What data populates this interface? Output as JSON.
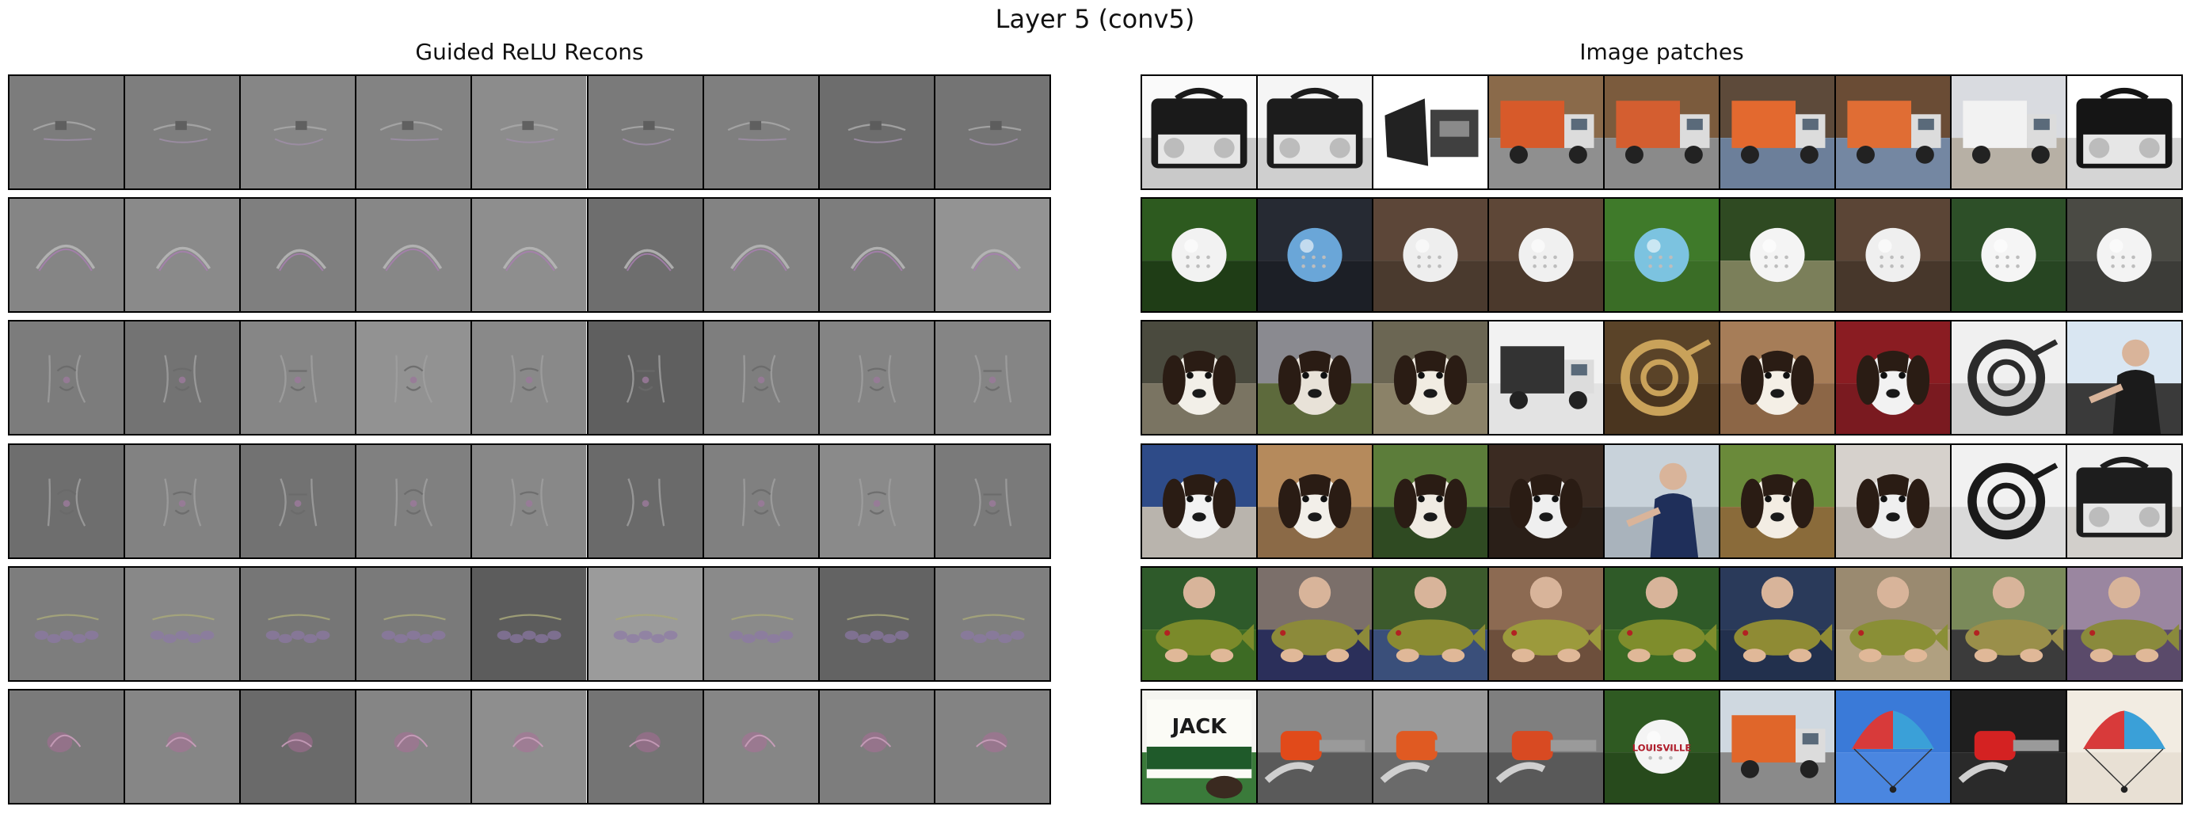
{
  "figure": {
    "title": "Layer 5 (conv5)",
    "left_panel_title": "Guided ReLU Recons",
    "right_panel_title": "Image patches"
  },
  "recons_rows": [
    {
      "motif": "texture-blob",
      "bg": [
        "#7c7c7c",
        "#7e7e7e",
        "#868686",
        "#838383",
        "#8c8c8c",
        "#7a7a7a",
        "#7f7f7f",
        "#6d6d6d",
        "#747474"
      ]
    },
    {
      "motif": "arc",
      "bg": [
        "#858585",
        "#8a8a8a",
        "#7f7f7f",
        "#878787",
        "#8e8e8e",
        "#6e6e6e",
        "#838383",
        "#7d7d7d",
        "#939393"
      ]
    },
    {
      "motif": "dog-face-sketch",
      "bg": [
        "#7c7c7c",
        "#737373",
        "#868686",
        "#929292",
        "#898989",
        "#5f5f5f",
        "#7e7e7e",
        "#848484",
        "#858585"
      ]
    },
    {
      "motif": "dog-face-sketch",
      "bg": [
        "#6e6e6e",
        "#828282",
        "#727272",
        "#808080",
        "#888888",
        "#6a6a6a",
        "#808080",
        "#8a8a8a",
        "#7a7a7a"
      ]
    },
    {
      "motif": "fish-bumps",
      "bg": [
        "#7d7d7d",
        "#888888",
        "#767676",
        "#7a7a7a",
        "#5c5c5c",
        "#9b9b9b",
        "#8a8a8a",
        "#636363",
        "#7f7f7f"
      ]
    },
    {
      "motif": "colored-blob",
      "bg": [
        "#7a7a7a",
        "#868686",
        "#6a6a6a",
        "#858585",
        "#8e8e8e",
        "#747474",
        "#868686",
        "#7d7d7d",
        "#838383"
      ]
    }
  ],
  "patch_rows": [
    {
      "content": "boombox-and-truck",
      "tiles": [
        {
          "icon": "boombox-icon",
          "sky": "#fafafa",
          "ground": "#c9c9c9",
          "obj": "#1a1a1a"
        },
        {
          "icon": "boombox-icon",
          "sky": "#f5f5f5",
          "ground": "#cfcfcf",
          "obj": "#1c1c1c"
        },
        {
          "icon": "speaker-icon",
          "sky": "#ffffff",
          "ground": "#ffffff",
          "obj": "#222222"
        },
        {
          "icon": "truck-icon",
          "sky": "#8a6a4a",
          "ground": "#8f8f8f",
          "obj": "#d75a2a"
        },
        {
          "icon": "truck-icon",
          "sky": "#7b5b3d",
          "ground": "#8a8a8a",
          "obj": "#d45e30"
        },
        {
          "icon": "truck-icon",
          "sky": "#5d4a3a",
          "ground": "#6c7f9a",
          "obj": "#e3692f"
        },
        {
          "icon": "truck-icon",
          "sky": "#6a4c35",
          "ground": "#7487a2",
          "obj": "#e06d34"
        },
        {
          "icon": "truck-icon",
          "sky": "#d9dbe0",
          "ground": "#b7b0a5",
          "obj": "#f2f2f2"
        },
        {
          "icon": "boombox-icon",
          "sky": "#ffffff",
          "ground": "#d5d5d5",
          "obj": "#151515"
        }
      ]
    },
    {
      "content": "golf-balls",
      "tiles": [
        {
          "icon": "ball-icon",
          "sky": "#2d5a1f",
          "ground": "#1f3d16",
          "obj": "#f2f2f2"
        },
        {
          "icon": "ball-icon",
          "sky": "#262a33",
          "ground": "#1c1f26",
          "obj": "#6aa6d8"
        },
        {
          "icon": "ball-icon",
          "sky": "#5c4638",
          "ground": "#4a3a2e",
          "obj": "#eeeeee"
        },
        {
          "icon": "ball-icon",
          "sky": "#5e4737",
          "ground": "#4b392c",
          "obj": "#f0f0f0"
        },
        {
          "icon": "ball-icon",
          "sky": "#3f7a2a",
          "ground": "#3a6d26",
          "obj": "#7cc3e0"
        },
        {
          "icon": "ball-icon",
          "sky": "#2f4a22",
          "ground": "#7b7f5a",
          "obj": "#f4f4f4"
        },
        {
          "icon": "ball-icon",
          "sky": "#5b4536",
          "ground": "#47372b",
          "obj": "#efefef"
        },
        {
          "icon": "ball-icon",
          "sky": "#2d4f28",
          "ground": "#274522",
          "obj": "#f5f5f5"
        },
        {
          "icon": "ball-icon",
          "sky": "#4a4a44",
          "ground": "#3c3c38",
          "obj": "#f3f3f3"
        }
      ]
    },
    {
      "content": "dogs-and-horn",
      "tiles": [
        {
          "icon": "dog-icon",
          "sky": "#4a4a3e",
          "ground": "#7a7462",
          "obj": "#f2efe8"
        },
        {
          "icon": "dog-icon",
          "sky": "#8a8a90",
          "ground": "#5d6a3c",
          "obj": "#e8e2d8"
        },
        {
          "icon": "dog-icon",
          "sky": "#6b6653",
          "ground": "#8b8268",
          "obj": "#f1ece2"
        },
        {
          "icon": "truck-icon",
          "sky": "#f2f2f2",
          "ground": "#e3e3e3",
          "obj": "#333333"
        },
        {
          "icon": "horn-icon",
          "sky": "#5a4328",
          "ground": "#4a351f",
          "obj": "#c9a25a"
        },
        {
          "icon": "dog-icon",
          "sky": "#a67d58",
          "ground": "#8c6646",
          "obj": "#f4efe6"
        },
        {
          "icon": "dog-icon",
          "sky": "#8a1c22",
          "ground": "#7a1a20",
          "obj": "#f2f2f2"
        },
        {
          "icon": "horn-icon",
          "sky": "#f0f0f0",
          "ground": "#cfcfcf",
          "obj": "#2b2b2b"
        },
        {
          "icon": "person-icon",
          "sky": "#d9e6f2",
          "ground": "#3a3a3a",
          "obj": "#1b1b1b"
        }
      ]
    },
    {
      "content": "spaniels",
      "tiles": [
        {
          "icon": "dog-icon",
          "sky": "#2e4b88",
          "ground": "#b9b4ad",
          "obj": "#f2f2f2"
        },
        {
          "icon": "dog-icon",
          "sky": "#b58a5c",
          "ground": "#8b6a47",
          "obj": "#f2efe9"
        },
        {
          "icon": "dog-icon",
          "sky": "#5c7d3a",
          "ground": "#2f4a22",
          "obj": "#f0ebe2"
        },
        {
          "icon": "dog-icon",
          "sky": "#3b2b22",
          "ground": "#2a1f18",
          "obj": "#efefef"
        },
        {
          "icon": "person-icon",
          "sky": "#c8d2da",
          "ground": "#a9b3bc",
          "obj": "#1f2f5a"
        },
        {
          "icon": "dog-icon",
          "sky": "#6a8a3a",
          "ground": "#8a6b3a",
          "obj": "#f3ede3"
        },
        {
          "icon": "dog-icon",
          "sky": "#d6d1cc",
          "ground": "#bcb6b0",
          "obj": "#efefef"
        },
        {
          "icon": "horn-icon",
          "sky": "#f1f1f1",
          "ground": "#dadada",
          "obj": "#1a1a1a"
        },
        {
          "icon": "boombox-icon",
          "sky": "#f0f0f0",
          "ground": "#d2cfcb",
          "obj": "#1d1d1d"
        }
      ]
    },
    {
      "content": "tench-fish",
      "tiles": [
        {
          "icon": "fish-icon",
          "sky": "#2e5a2a",
          "ground": "#3d6b24",
          "obj": "#7b8a2a"
        },
        {
          "icon": "fish-icon",
          "sky": "#7b6f6a",
          "ground": "#2b2f5a",
          "obj": "#8c8a3a"
        },
        {
          "icon": "fish-icon",
          "sky": "#3c5a2c",
          "ground": "#3a4f7a",
          "obj": "#8a8b32"
        },
        {
          "icon": "fish-icon",
          "sky": "#8c6a52",
          "ground": "#6d4f3c",
          "obj": "#9c9a3c"
        },
        {
          "icon": "fish-icon",
          "sky": "#2f5a28",
          "ground": "#3a6a24",
          "obj": "#7f8d2c"
        },
        {
          "icon": "fish-icon",
          "sky": "#2a3a5a",
          "ground": "#22304d",
          "obj": "#8f8b34"
        },
        {
          "icon": "fish-icon",
          "sky": "#9a8a70",
          "ground": "#b0a080",
          "obj": "#8a8f36"
        },
        {
          "icon": "fish-icon",
          "sky": "#7a8a5a",
          "ground": "#3b3b3b",
          "obj": "#9a8f4a"
        },
        {
          "icon": "fish-icon",
          "sky": "#9a86a0",
          "ground": "#5a4a6a",
          "obj": "#8a8a3c"
        }
      ]
    },
    {
      "content": "mixed-colorful",
      "tiles": [
        {
          "icon": "sign-icon",
          "sky": "#f4f4f0",
          "ground": "#3a7a3a",
          "obj": "#1f5a2a",
          "text": "JACK"
        },
        {
          "icon": "chainsaw-icon",
          "sky": "#8a8a8a",
          "ground": "#5a5a5a",
          "obj": "#e14a1a"
        },
        {
          "icon": "chainsaw-icon",
          "sky": "#9a9a9a",
          "ground": "#6a6a6a",
          "obj": "#e05a22"
        },
        {
          "icon": "chainsaw-icon",
          "sky": "#7f7f7f",
          "ground": "#595959",
          "obj": "#d84a22"
        },
        {
          "icon": "ball-icon",
          "sky": "#2f5a22",
          "ground": "#274a1c",
          "obj": "#f4f4f4",
          "text": "LOUISVILLE"
        },
        {
          "icon": "truck-icon",
          "sky": "#cfd8e0",
          "ground": "#8a8a8a",
          "obj": "#e0662a"
        },
        {
          "icon": "parachute-icon",
          "sky": "#3a7ad8",
          "ground": "#4a86e0",
          "obj": "#f2c02a"
        },
        {
          "icon": "chainsaw-icon",
          "sky": "#1f1f1f",
          "ground": "#2a2a2a",
          "obj": "#d42222"
        },
        {
          "icon": "parachute-icon",
          "sky": "#f2ece2",
          "ground": "#e8e0d4",
          "obj": "#2a9a5a"
        }
      ]
    }
  ]
}
